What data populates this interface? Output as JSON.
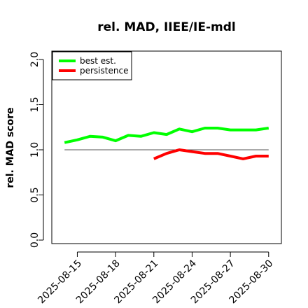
{
  "chart_data": {
    "type": "line",
    "title": "rel. MAD, IIEE/IE-mdl",
    "xlabel": "",
    "ylabel": "rel. MAD score",
    "ylim": [
      0.0,
      2.0
    ],
    "yticks": [
      0.0,
      0.5,
      1.0,
      1.5,
      2.0
    ],
    "ytick_labels": [
      "0.0",
      "0.5",
      "1.0",
      "1.5",
      "2.0"
    ],
    "xlim": [
      "2025-08-13",
      "2025-08-31"
    ],
    "xticks": [
      "2025-08-15",
      "2025-08-18",
      "2025-08-21",
      "2025-08-24",
      "2025-08-27",
      "2025-08-30"
    ],
    "x": [
      "2025-08-14",
      "2025-08-15",
      "2025-08-16",
      "2025-08-17",
      "2025-08-18",
      "2025-08-19",
      "2025-08-20",
      "2025-08-21",
      "2025-08-22",
      "2025-08-23",
      "2025-08-24",
      "2025-08-25",
      "2025-08-26",
      "2025-08-27",
      "2025-08-28",
      "2025-08-29",
      "2025-08-30"
    ],
    "series": [
      {
        "name": "best est.",
        "color": "#00ff00",
        "values": [
          1.08,
          1.11,
          1.15,
          1.14,
          1.1,
          1.16,
          1.15,
          1.19,
          1.17,
          1.23,
          1.2,
          1.24,
          1.24,
          1.22,
          1.22,
          1.22,
          1.24
        ]
      },
      {
        "name": "persistence",
        "color": "#ff0000",
        "values": [
          null,
          null,
          null,
          null,
          null,
          null,
          null,
          0.9,
          0.96,
          1.0,
          0.98,
          0.96,
          0.96,
          0.93,
          0.9,
          0.93,
          0.93
        ]
      }
    ],
    "reference_line": {
      "y": 1.0,
      "color": "#555555"
    },
    "legend_position": "top-left",
    "grid": false
  }
}
